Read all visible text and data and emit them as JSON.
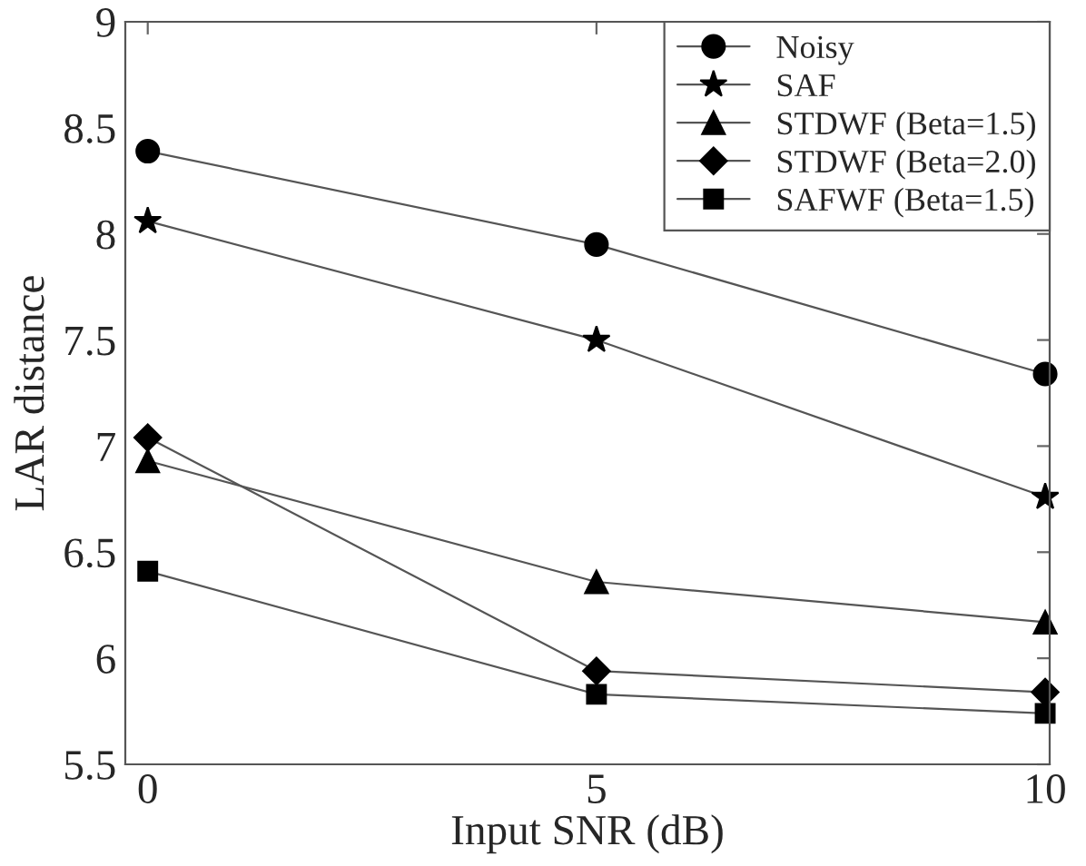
{
  "chart_data": {
    "type": "line",
    "xlabel": "Input SNR (dB)",
    "ylabel": "LAR distance",
    "x": [
      0,
      5,
      10
    ],
    "xlim": [
      -0.25,
      10.05
    ],
    "xticks": [
      0,
      5,
      10
    ],
    "ylim": [
      5.5,
      9
    ],
    "yticks": [
      5.5,
      6,
      6.5,
      7,
      7.5,
      8,
      8.5,
      9
    ],
    "grid": false,
    "legend": "top right",
    "line_style": "solid",
    "series": [
      {
        "name": "Noisy",
        "color": "#000000",
        "marker": "circle",
        "values": [
          8.39,
          7.95,
          7.34
        ]
      },
      {
        "name": "SAF",
        "color": "#000000",
        "marker": "star",
        "values": [
          8.06,
          7.5,
          6.76
        ]
      },
      {
        "name": "STDWF (Beta=1.5)",
        "color": "#000000",
        "marker": "triangle",
        "values": [
          6.93,
          6.36,
          6.17
        ]
      },
      {
        "name": "STDWF (Beta=2.0)",
        "color": "#000000",
        "marker": "diamond",
        "values": [
          7.04,
          5.94,
          5.84
        ]
      },
      {
        "name": "SAFWF (Beta=1.5)",
        "color": "#000000",
        "marker": "square",
        "values": [
          6.41,
          5.83,
          5.74
        ]
      }
    ]
  }
}
